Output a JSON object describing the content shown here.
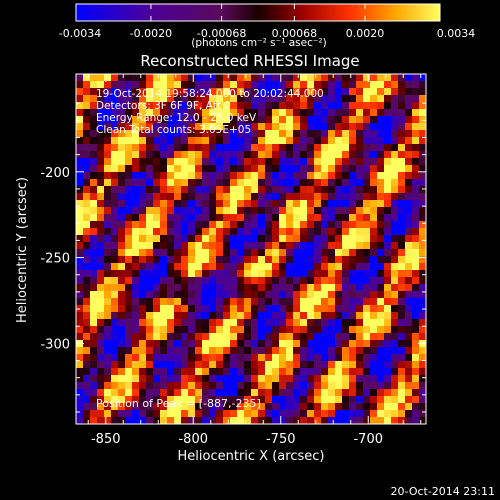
{
  "colorbar": {
    "tick_labels": [
      "-0.0034",
      "-0.0020",
      "-0.00068",
      "0.00068",
      "0.0020",
      "0.0034"
    ],
    "units": "(photons cm⁻² s⁻¹ asec⁻²)",
    "vmin": -0.0034,
    "vmax": 0.0034
  },
  "annotations": {
    "time_range": "19-Oct-2014 19:58:24.000 to 20:02:44.000",
    "detectors": "Detectors: 3F 6F 9F, Att 0",
    "energy_range": "Energy Range: 12.0 - 25.0 keV",
    "clean_counts": "Clean    Total counts: 3.05E+05",
    "peak_position": "Position of Peak = [-887,-235]"
  },
  "timestamp": "20-Oct-2014 23:11",
  "chart_data": {
    "type": "heatmap",
    "title": "Reconstructed RHESSI Image",
    "xlabel": "Heliocentric X (arcsec)",
    "ylabel": "Heliocentric Y (arcsec)",
    "xlim": [
      -867,
      -667
    ],
    "ylim": [
      -347,
      -143
    ],
    "x_ticks": [
      -850,
      -800,
      -750,
      -700
    ],
    "y_ticks": [
      -200,
      -250,
      -300
    ],
    "x_tick_labels": [
      "-850",
      "-800",
      "-750",
      "-700"
    ],
    "y_tick_labels": [
      "-200",
      "-250",
      "-300"
    ],
    "colormap": [
      "#0000ff",
      "#4b009a",
      "#5a0a5a",
      "#1a0000",
      "#9a0000",
      "#ff3000",
      "#ffa800",
      "#ffff60"
    ],
    "pattern": "diagonal fringe stripes",
    "peak": [
      -887,
      -235
    ]
  }
}
